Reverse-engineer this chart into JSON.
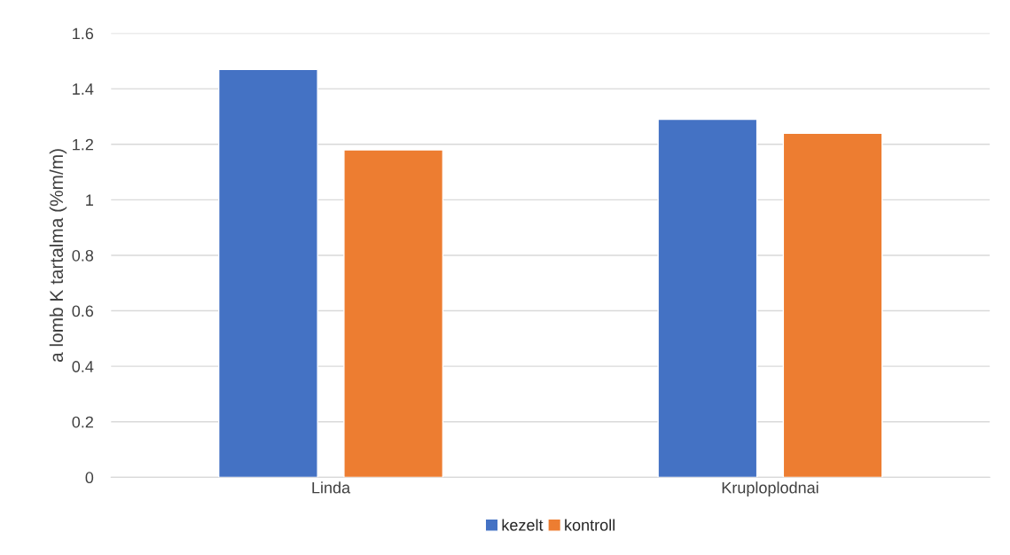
{
  "chart_data": {
    "type": "bar",
    "ylabel": "a lomb K tartalma (%m/m)",
    "categories": [
      "Linda",
      "Kruploplodnai"
    ],
    "series": [
      {
        "name": "kezelt",
        "color": "#4472c4",
        "values": [
          1.47,
          1.29
        ]
      },
      {
        "name": "kontroll",
        "color": "#ed7d31",
        "values": [
          1.18,
          1.24
        ]
      }
    ],
    "ylim": [
      0,
      1.6
    ],
    "yticks": [
      0,
      {
        "value": 0.2,
        "label": "0.2"
      },
      {
        "value": 0.4,
        "label": "0.4"
      },
      {
        "value": 0.6,
        "label": "0.6"
      },
      {
        "value": 0.8,
        "label": "0.8"
      },
      1,
      {
        "value": 1.2,
        "label": "1.2"
      },
      {
        "value": 1.4,
        "label": "1.4"
      },
      {
        "value": 1.6,
        "label": "1.6"
      }
    ],
    "grid": "y",
    "legend": "bottom"
  }
}
